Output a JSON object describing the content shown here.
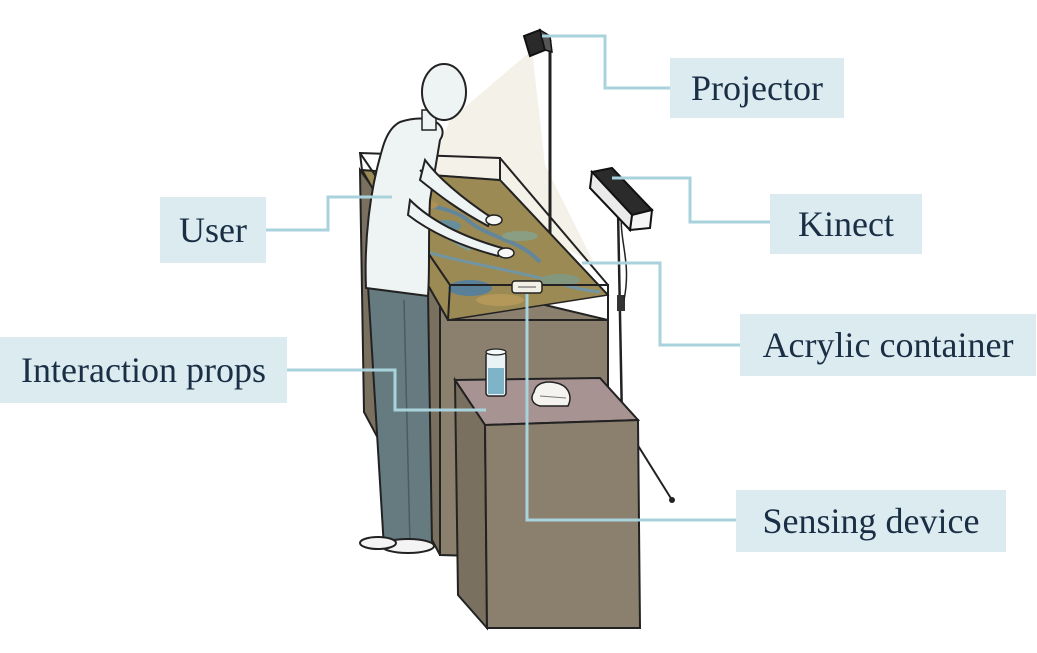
{
  "labels": {
    "projector": "Projector",
    "kinect": "Kinect",
    "user": "User",
    "acrylic_container": "Acrylic container",
    "interaction_props": "Interaction props",
    "sensing_device": "Sensing device"
  },
  "colors": {
    "label_background": "#dcebf0",
    "leader_line": "#a9d3dc",
    "label_text": "#1a2f45",
    "cabinet": "#8b7f6e",
    "map_surface": "#9c8a55",
    "pants": "#667b80",
    "side_table_top": "#a89393"
  }
}
